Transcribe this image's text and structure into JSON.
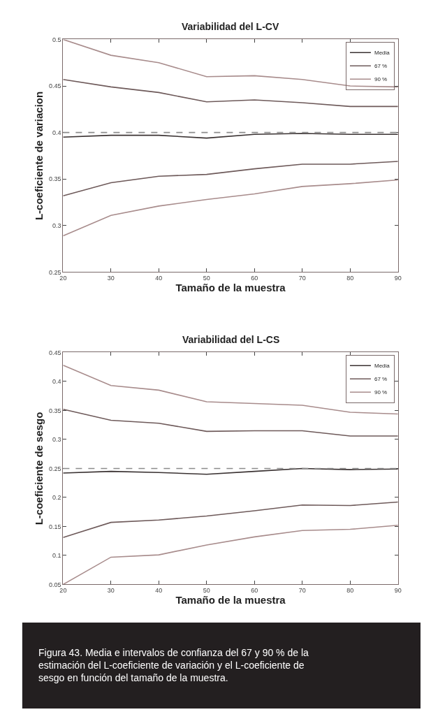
{
  "chart_data": [
    {
      "type": "line",
      "title": "Variabilidad del L-CV",
      "xlabel": "Tamaño de la muestra",
      "ylabel": "L-coeficiente de variacion",
      "x": [
        20,
        30,
        40,
        50,
        60,
        70,
        80,
        90
      ],
      "series": [
        {
          "name": "Media",
          "color": "#3a3232",
          "values": [
            0.395,
            0.397,
            0.397,
            0.394,
            0.398,
            0.399,
            0.398,
            0.398
          ]
        },
        {
          "name": "67 %",
          "color": "#6e5a5a",
          "values": [
            0.457,
            0.449,
            0.443,
            0.433,
            0.435,
            0.432,
            0.428,
            0.428
          ]
        },
        {
          "color": "#6e5a5a",
          "values": [
            0.332,
            0.346,
            0.353,
            0.355,
            0.361,
            0.366,
            0.366,
            0.369
          ]
        },
        {
          "name": "90 %",
          "color": "#a88c8c",
          "values": [
            0.5,
            0.483,
            0.475,
            0.46,
            0.461,
            0.457,
            0.45,
            0.449
          ]
        },
        {
          "color": "#a88c8c",
          "values": [
            0.289,
            0.311,
            0.321,
            0.328,
            0.334,
            0.342,
            0.345,
            0.349
          ]
        }
      ],
      "ref_lines": [
        {
          "axis": "y",
          "value": 0.4,
          "color": "#8c8c8c",
          "line_style": "dashed"
        }
      ],
      "xlim": [
        20,
        90
      ],
      "xticks": [
        20,
        30,
        40,
        50,
        60,
        70,
        80,
        90
      ],
      "ylim": [
        0.25,
        0.5
      ],
      "yticks": [
        0.25,
        0.3,
        0.35,
        0.4,
        0.45,
        0.5
      ],
      "legend": "top right",
      "line_style": "solid",
      "marker": "none"
    },
    {
      "type": "line",
      "title": "Variabilidad del L-CS",
      "xlabel": "Tamaño de la muestra",
      "ylabel": "L-coeficiente de sesgo",
      "x": [
        20,
        30,
        40,
        50,
        60,
        70,
        80,
        90
      ],
      "series": [
        {
          "name": "Media",
          "color": "#3a3232",
          "values": [
            0.242,
            0.245,
            0.243,
            0.24,
            0.245,
            0.25,
            0.248,
            0.249
          ]
        },
        {
          "name": "67 %",
          "color": "#6e5a5a",
          "values": [
            0.352,
            0.333,
            0.328,
            0.314,
            0.315,
            0.315,
            0.306,
            0.306
          ]
        },
        {
          "color": "#6e5a5a",
          "values": [
            0.131,
            0.157,
            0.161,
            0.168,
            0.177,
            0.187,
            0.186,
            0.192
          ]
        },
        {
          "name": "90 %",
          "color": "#a88c8c",
          "values": [
            0.428,
            0.393,
            0.385,
            0.365,
            0.362,
            0.359,
            0.347,
            0.344
          ]
        },
        {
          "color": "#a88c8c",
          "values": [
            0.05,
            0.097,
            0.101,
            0.118,
            0.132,
            0.143,
            0.145,
            0.152
          ]
        }
      ],
      "ref_lines": [
        {
          "axis": "y",
          "value": 0.25,
          "color": "#8c8c8c",
          "line_style": "dashed"
        }
      ],
      "xlim": [
        20,
        90
      ],
      "xticks": [
        20,
        30,
        40,
        50,
        60,
        70,
        80,
        90
      ],
      "ylim": [
        0.05,
        0.45
      ],
      "yticks": [
        0.05,
        0.1,
        0.15,
        0.2,
        0.25,
        0.3,
        0.35,
        0.4,
        0.45
      ],
      "legend": "top right",
      "line_style": "solid",
      "marker": "none",
      "annotations": [
        "Figura 43. Media e intervalos de confianza del 67 y 90 % de la estimación del L-coeficiente de variación y el L-coeficiente de sesgo en función del tamaño de la muestra."
      ]
    }
  ]
}
